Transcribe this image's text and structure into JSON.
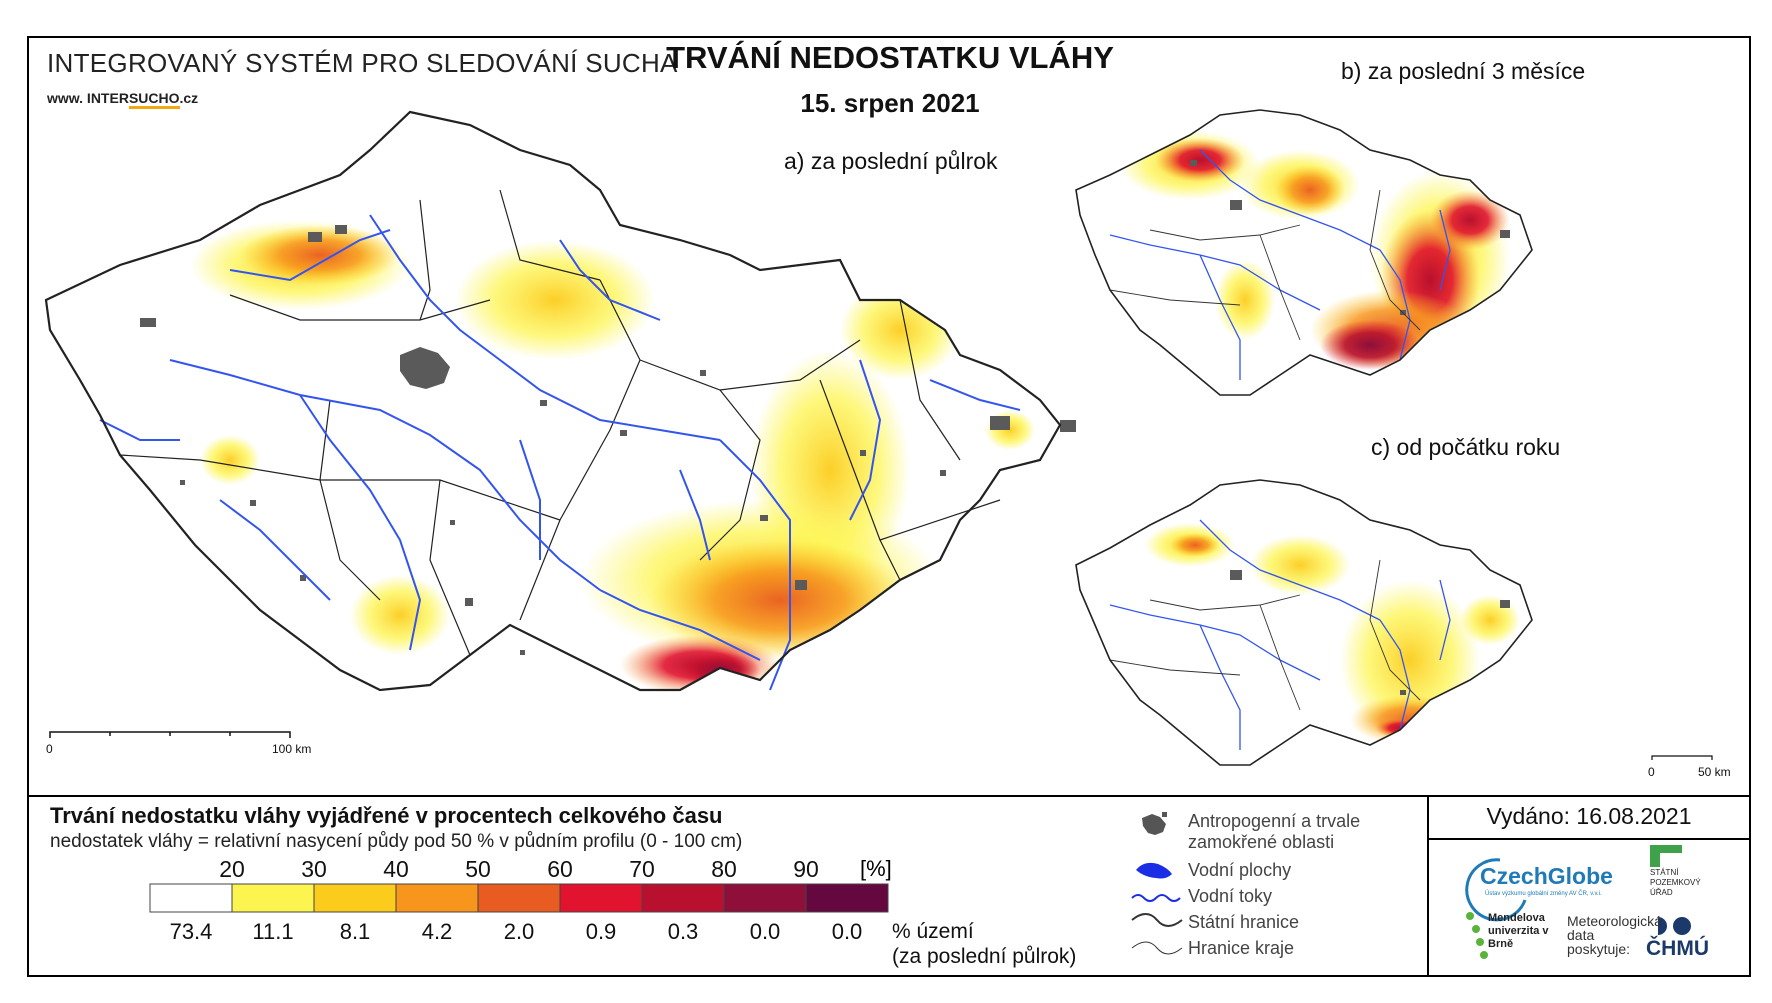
{
  "header": {
    "system_title": "INTEGROVANÝ SYSTÉM PRO SLEDOVÁNÍ SUCHA",
    "url_prefix": "www. INTER",
    "url_highlight": "SUCHO",
    "url_suffix": ".cz",
    "title": "TRVÁNÍ NEDOSTATKU VLÁHY",
    "date": "15. srpen 2021"
  },
  "maps": {
    "main_label": "a) za poslední půlrok",
    "three_months_label": "b) za poslední 3 měsíce",
    "year_start_label": "c) od počátku roku",
    "main_scale": {
      "start": "0",
      "end": "100 km"
    },
    "small_scale": {
      "start": "0",
      "end": "50 km"
    }
  },
  "legend": {
    "title": "Trvání nedostatku vláhy vyjádřené v procentech celkového času",
    "subtitle": "nedostatek vláhy = relativní nasycení půdy pod 50 % v půdním profilu (0 - 100 cm)",
    "unit": "[%]",
    "thresholds": [
      "20",
      "30",
      "40",
      "50",
      "60",
      "70",
      "80",
      "90"
    ],
    "classes": [
      {
        "color": "#ffffff",
        "share": "73.4"
      },
      {
        "color": "#fdf54f",
        "share": "11.1"
      },
      {
        "color": "#fccc1c",
        "share": "8.1"
      },
      {
        "color": "#f7951d",
        "share": "4.2"
      },
      {
        "color": "#e95c21",
        "share": "2.0"
      },
      {
        "color": "#e1132e",
        "share": "0.9"
      },
      {
        "color": "#b8102e",
        "share": "0.3"
      },
      {
        "color": "#8d0f3a",
        "share": "0.0"
      },
      {
        "color": "#65083f",
        "share": "0.0"
      }
    ],
    "territory_label_1": "% území",
    "territory_label_2": "(za poslední půlrok)"
  },
  "symbols": {
    "urban": "Antropogenní a trvale",
    "urban_2": "zamokřené oblasti",
    "water_bodies": "Vodní plochy",
    "rivers": "Vodní toky",
    "state_border": "Státní hranice",
    "region_border": "Hranice kraje"
  },
  "issue": {
    "issued": "Vydáno: 16.08.2021"
  },
  "logos": {
    "czechglobe": "CzechGlobe",
    "czechglobe_sub": "Ústav výzkumu globální změny AV ČR, v.v.i.",
    "spu": "STÁTNÍ POZEMKOVÝ ÚŘAD",
    "mendel": "Mendelova univerzita v Brně",
    "met_data": "Meteorologická data poskytuje:",
    "chmu": "ČHMÚ"
  },
  "colors": {
    "river": "#3355ee",
    "urban": "#5a5a5a",
    "border": "#222222"
  }
}
